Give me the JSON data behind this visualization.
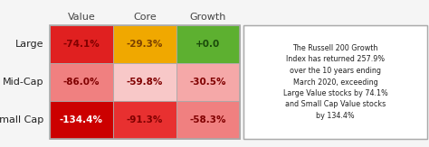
{
  "col_headers": [
    "Value",
    "Core",
    "Growth"
  ],
  "row_headers": [
    "Large",
    "Mid-Cap",
    "Small Cap"
  ],
  "values": [
    [
      "-74.1%",
      "-29.3%",
      "+0.0"
    ],
    [
      "-86.0%",
      "-59.8%",
      "-30.5%"
    ],
    [
      "-134.4%",
      "-91.3%",
      "-58.3%"
    ]
  ],
  "cell_colors": [
    [
      "#e02020",
      "#f0a800",
      "#5db030"
    ],
    [
      "#f08080",
      "#f8c8c8",
      "#f5a8a8"
    ],
    [
      "#cc0000",
      "#e83030",
      "#f08080"
    ]
  ],
  "text_colors": [
    [
      "#800000",
      "#7a4000",
      "#1a4a0a"
    ],
    [
      "#800000",
      "#800000",
      "#800000"
    ],
    [
      "#ffffff",
      "#800000",
      "#800000"
    ]
  ],
  "annotation": "The Russell 200 Growth\nIndex has returned 257.9%\nover the 10 years ending\nMarch 2020, exceeding\nLarge Value stocks by 74.1%\nand Small Cap Value stocks\nby 134.4%",
  "bg_color": "#f5f5f5",
  "border_color": "#aaaaaa",
  "header_color": "#444444",
  "row_label_color": "#222222",
  "fig_width": 4.74,
  "fig_height": 1.63,
  "dpi": 100
}
